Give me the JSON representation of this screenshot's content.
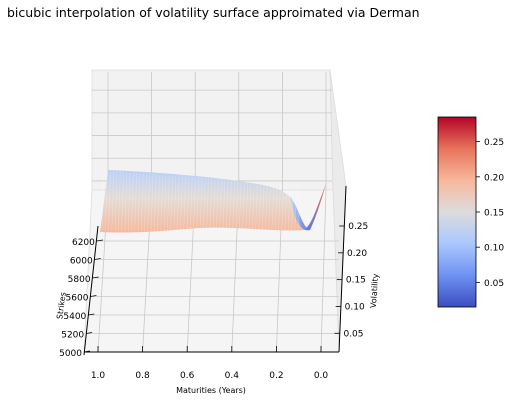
{
  "chart_data": {
    "type": "surface3d",
    "title": "bicubic interpolation of volatility surface approimated via Derman",
    "xlabel": "Maturities (Years)",
    "ylabel": "Strikes",
    "zlabel": "Volatility",
    "x_ticks": [
      "1.0",
      "0.8",
      "0.6",
      "0.4",
      "0.2",
      "0.0"
    ],
    "y_ticks": [
      "5000",
      "5200",
      "5400",
      "5600",
      "5800",
      "6000",
      "6200"
    ],
    "z_ticks": [
      "0.05",
      "0.10",
      "0.15",
      "0.20",
      "0.25"
    ],
    "xlim": [
      0.0,
      1.0
    ],
    "ylim": [
      5000,
      6200
    ],
    "zlim": [
      0.03,
      0.29
    ],
    "colorbar": {
      "ticks": [
        "0.05",
        "0.10",
        "0.15",
        "0.20",
        "0.25"
      ],
      "range": [
        0.015,
        0.285
      ],
      "colormap": "coolwarm",
      "colors": [
        "#3b4cc0",
        "#6f92f3",
        "#aac7fd",
        "#dddcdc",
        "#f7b89c",
        "#e7745b",
        "#b40426"
      ]
    },
    "grid": true,
    "legend": "none"
  }
}
